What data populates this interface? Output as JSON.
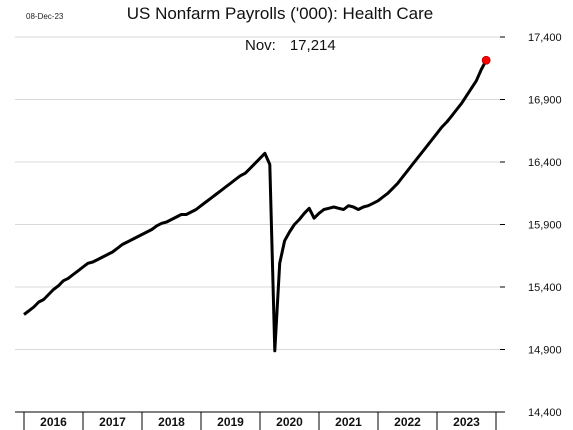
{
  "date_stamp": "08-Dec-23",
  "annotation": {
    "label": "Nov:",
    "value": "17,214"
  },
  "chart_data": {
    "type": "line",
    "title": "US Nonfarm Payrolls ('000): Health Care",
    "xlabel": "",
    "ylabel": "",
    "ylim": [
      14400,
      17400
    ],
    "yticks": [
      14400,
      14900,
      15400,
      15900,
      16400,
      16900,
      17400
    ],
    "ytick_labels": [
      "14,400",
      "14,900",
      "15,400",
      "15,900",
      "16,400",
      "16,900",
      "17,400"
    ],
    "grid": true,
    "x_categories": [
      "2016",
      "2017",
      "2018",
      "2019",
      "2020",
      "2021",
      "2022",
      "2023"
    ],
    "series": [
      {
        "color": "#000000",
        "x": [
          "2016-01",
          "2016-02",
          "2016-03",
          "2016-04",
          "2016-05",
          "2016-06",
          "2016-07",
          "2016-08",
          "2016-09",
          "2016-10",
          "2016-11",
          "2016-12",
          "2017-01",
          "2017-02",
          "2017-03",
          "2017-04",
          "2017-05",
          "2017-06",
          "2017-07",
          "2017-08",
          "2017-09",
          "2017-10",
          "2017-11",
          "2017-12",
          "2018-01",
          "2018-02",
          "2018-03",
          "2018-04",
          "2018-05",
          "2018-06",
          "2018-07",
          "2018-08",
          "2018-09",
          "2018-10",
          "2018-11",
          "2018-12",
          "2019-01",
          "2019-02",
          "2019-03",
          "2019-04",
          "2019-05",
          "2019-06",
          "2019-07",
          "2019-08",
          "2019-09",
          "2019-10",
          "2019-11",
          "2019-12",
          "2020-01",
          "2020-02",
          "2020-03",
          "2020-04",
          "2020-05",
          "2020-06",
          "2020-07",
          "2020-08",
          "2020-09",
          "2020-10",
          "2020-11",
          "2020-12",
          "2021-01",
          "2021-02",
          "2021-03",
          "2021-04",
          "2021-05",
          "2021-06",
          "2021-07",
          "2021-08",
          "2021-09",
          "2021-10",
          "2021-11",
          "2021-12",
          "2022-01",
          "2022-02",
          "2022-03",
          "2022-04",
          "2022-05",
          "2022-06",
          "2022-07",
          "2022-08",
          "2022-09",
          "2022-10",
          "2022-11",
          "2022-12",
          "2023-01",
          "2023-02",
          "2023-03",
          "2023-04",
          "2023-05",
          "2023-06",
          "2023-07",
          "2023-08",
          "2023-09",
          "2023-10",
          "2023-11"
        ],
        "values": [
          15180,
          15210,
          15240,
          15280,
          15300,
          15340,
          15380,
          15410,
          15450,
          15470,
          15500,
          15530,
          15560,
          15590,
          15600,
          15620,
          15640,
          15660,
          15680,
          15710,
          15740,
          15760,
          15780,
          15800,
          15820,
          15840,
          15860,
          15890,
          15910,
          15920,
          15940,
          15960,
          15980,
          15980,
          16000,
          16020,
          16050,
          16080,
          16110,
          16140,
          16170,
          16200,
          16230,
          16260,
          16290,
          16310,
          16350,
          16390,
          16430,
          16470,
          16380,
          14890,
          15590,
          15770,
          15840,
          15900,
          15940,
          15990,
          16030,
          15950,
          15990,
          16020,
          16030,
          16040,
          16030,
          16020,
          16050,
          16040,
          16020,
          16040,
          16050,
          16070,
          16090,
          16120,
          16150,
          16190,
          16230,
          16280,
          16330,
          16380,
          16430,
          16480,
          16530,
          16580,
          16630,
          16680,
          16720,
          16770,
          16820,
          16870,
          16930,
          16990,
          17050,
          17140,
          17214
        ]
      }
    ],
    "last_point": {
      "x": "2023-11",
      "value": 17214,
      "color": "#ff0000"
    }
  }
}
